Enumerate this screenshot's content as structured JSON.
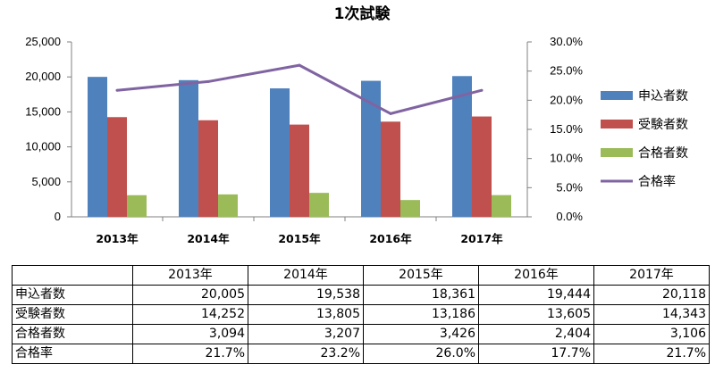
{
  "chart_data": {
    "type": "bar",
    "title": "1次試験",
    "categories": [
      "2013年",
      "2014年",
      "2015年",
      "2016年",
      "2017年"
    ],
    "series": [
      {
        "name": "申込者数",
        "kind": "bar",
        "axis": "left",
        "color": "#4f81bd",
        "values": [
          20005,
          19538,
          18361,
          19444,
          20118
        ]
      },
      {
        "name": "受験者数",
        "kind": "bar",
        "axis": "left",
        "color": "#c0504d",
        "values": [
          14252,
          13805,
          13186,
          13605,
          14343
        ]
      },
      {
        "name": "合格者数",
        "kind": "bar",
        "axis": "left",
        "color": "#9bbb59",
        "values": [
          3094,
          3207,
          3426,
          2404,
          3106
        ]
      },
      {
        "name": "合格率",
        "kind": "line",
        "axis": "right",
        "color": "#8064a2",
        "values": [
          21.7,
          23.2,
          26.0,
          17.7,
          21.7
        ]
      }
    ],
    "left_axis": {
      "ylim": [
        0,
        25000
      ],
      "ticks": [
        "0",
        "5,000",
        "10,000",
        "15,000",
        "20,000",
        "25,000"
      ]
    },
    "right_axis": {
      "ylim": [
        0,
        30
      ],
      "ticks": [
        "0.0%",
        "5.0%",
        "10.0%",
        "15.0%",
        "20.0%",
        "25.0%",
        "30.0%"
      ]
    },
    "legend_position": "right",
    "grid": false
  },
  "table": {
    "headers": [
      "",
      "2013年",
      "2014年",
      "2015年",
      "2016年",
      "2017年"
    ],
    "rows": [
      {
        "label": "申込者数",
        "cells": [
          "20,005",
          "19,538",
          "18,361",
          "19,444",
          "20,118"
        ]
      },
      {
        "label": "受験者数",
        "cells": [
          "14,252",
          "13,805",
          "13,186",
          "13,605",
          "14,343"
        ]
      },
      {
        "label": "合格者数",
        "cells": [
          "3,094",
          "3,207",
          "3,426",
          "2,404",
          "3,106"
        ]
      },
      {
        "label": "合格率",
        "cells": [
          "21.7%",
          "23.2%",
          "26.0%",
          "17.7%",
          "21.7%"
        ]
      }
    ]
  }
}
